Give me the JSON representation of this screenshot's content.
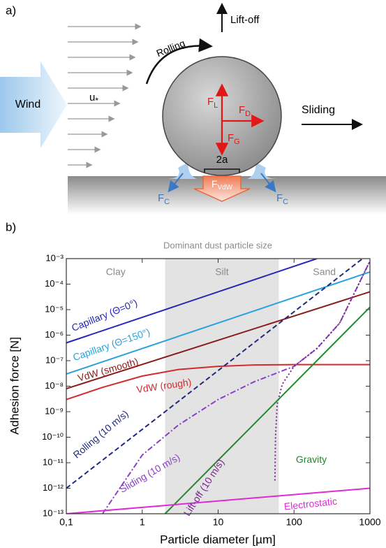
{
  "panel_a": {
    "label": "a)",
    "lift_off": "Lift-off",
    "rolling": "Rolling",
    "wind": "Wind",
    "u_star": {
      "symbol": "u",
      "sub": "*"
    },
    "forces": {
      "lift": {
        "symbol": "F",
        "sub": "L"
      },
      "drag": {
        "symbol": "F",
        "sub": "D"
      },
      "gravity": {
        "symbol": "F",
        "sub": "G"
      },
      "vdw": {
        "symbol": "F",
        "sub": "VdW"
      },
      "capillary_left": {
        "symbol": "F",
        "sub": "C"
      },
      "capillary_right": {
        "symbol": "F",
        "sub": "C"
      }
    },
    "sliding": "Sliding",
    "contact": "2a"
  },
  "panel_b": {
    "label": "b)"
  },
  "chart_data": {
    "type": "line",
    "title": "Dominant dust particle size",
    "x_label": "Particle diameter [µm]",
    "y_label": "Adhesion force [N]",
    "x_scale": "log",
    "y_scale": "log",
    "xlim": [
      0.1,
      1000
    ],
    "ylim": [
      1e-13,
      0.001
    ],
    "xticks": [
      {
        "value": 0.1,
        "label": "0,1"
      },
      1,
      10,
      100,
      1000
    ],
    "yticks": [
      {
        "value": 1e-13,
        "label": "10⁻¹³"
      },
      {
        "value": 1e-12,
        "label": "10⁻¹²"
      },
      {
        "value": 1e-11,
        "label": "10⁻¹¹"
      },
      {
        "value": 1e-10,
        "label": "10⁻¹⁰"
      },
      {
        "value": 1e-09,
        "label": "10⁻⁹"
      },
      {
        "value": 1e-08,
        "label": "10⁻⁸"
      },
      {
        "value": 1e-07,
        "label": "10⁻⁷"
      },
      {
        "value": 1e-06,
        "label": "10⁻⁶"
      },
      {
        "value": 1e-05,
        "label": "10⁻⁵"
      },
      {
        "value": 0.0001,
        "label": "10⁻⁴"
      },
      {
        "value": 0.001,
        "label": "10⁻³"
      }
    ],
    "size_classes": [
      "Clay",
      "Silt",
      "Sand"
    ],
    "silt_range": [
      2,
      63
    ],
    "silt_color": "#e3e3e3",
    "series": [
      {
        "name": "Capillary (Θ=0°)",
        "color": "#2626b8",
        "dash": "solid",
        "x": [
          0.1,
          200
        ],
        "values": [
          5e-07,
          0.001
        ]
      },
      {
        "name": "Capillary (Θ=150°)",
        "color": "#29a3de",
        "dash": "solid",
        "x": [
          0.1,
          1000
        ],
        "values": [
          3e-08,
          0.0003
        ]
      },
      {
        "name": "VdW (smooth)",
        "color": "#8b1c1c",
        "dash": "solid",
        "x": [
          0.1,
          1000
        ],
        "values": [
          8e-09,
          5e-05
        ]
      },
      {
        "name": "VdW (rough)",
        "color": "#d42a2a",
        "dash": "solid",
        "x": [
          0.1,
          0.3,
          1,
          3,
          10,
          30,
          100,
          1000
        ],
        "values": [
          3e-09,
          9e-09,
          2.5e-08,
          4.5e-08,
          6e-08,
          6.8e-08,
          7e-08,
          7e-08
        ]
      },
      {
        "name": "Rolling (10 m/s)",
        "color": "#1f2a7a",
        "dash": "dashed",
        "x": [
          0.1,
          800
        ],
        "values": [
          1e-12,
          0.001
        ]
      },
      {
        "name": "Sliding (10 m/s)",
        "color": "#8a3fc4",
        "dash": "dashdot",
        "x": [
          0.3,
          1,
          3,
          10,
          30,
          100,
          200,
          400,
          1000
        ],
        "values": [
          1e-13,
          2e-11,
          3e-10,
          3e-09,
          1.5e-08,
          6e-08,
          3e-07,
          3e-06,
          0.0008
        ]
      },
      {
        "name": "Lift-off (10 m/s)",
        "color": "#7a2690",
        "dash": "dotted",
        "x": [
          56,
          57,
          60,
          70,
          100,
          200,
          400,
          1000
        ],
        "values": [
          2e-12,
          1e-10,
          2e-09,
          1.2e-08,
          6e-08,
          3e-07,
          3e-06,
          0.0008
        ]
      },
      {
        "name": "Gravity",
        "color": "#1f8a2a",
        "dash": "solid",
        "x": [
          2,
          1000
        ],
        "values": [
          1e-13,
          1.25e-05
        ]
      },
      {
        "name": "Electrostatic",
        "color": "#e02ad8",
        "dash": "solid",
        "x": [
          0.1,
          1000
        ],
        "values": [
          1e-13,
          1e-12
        ]
      }
    ]
  }
}
